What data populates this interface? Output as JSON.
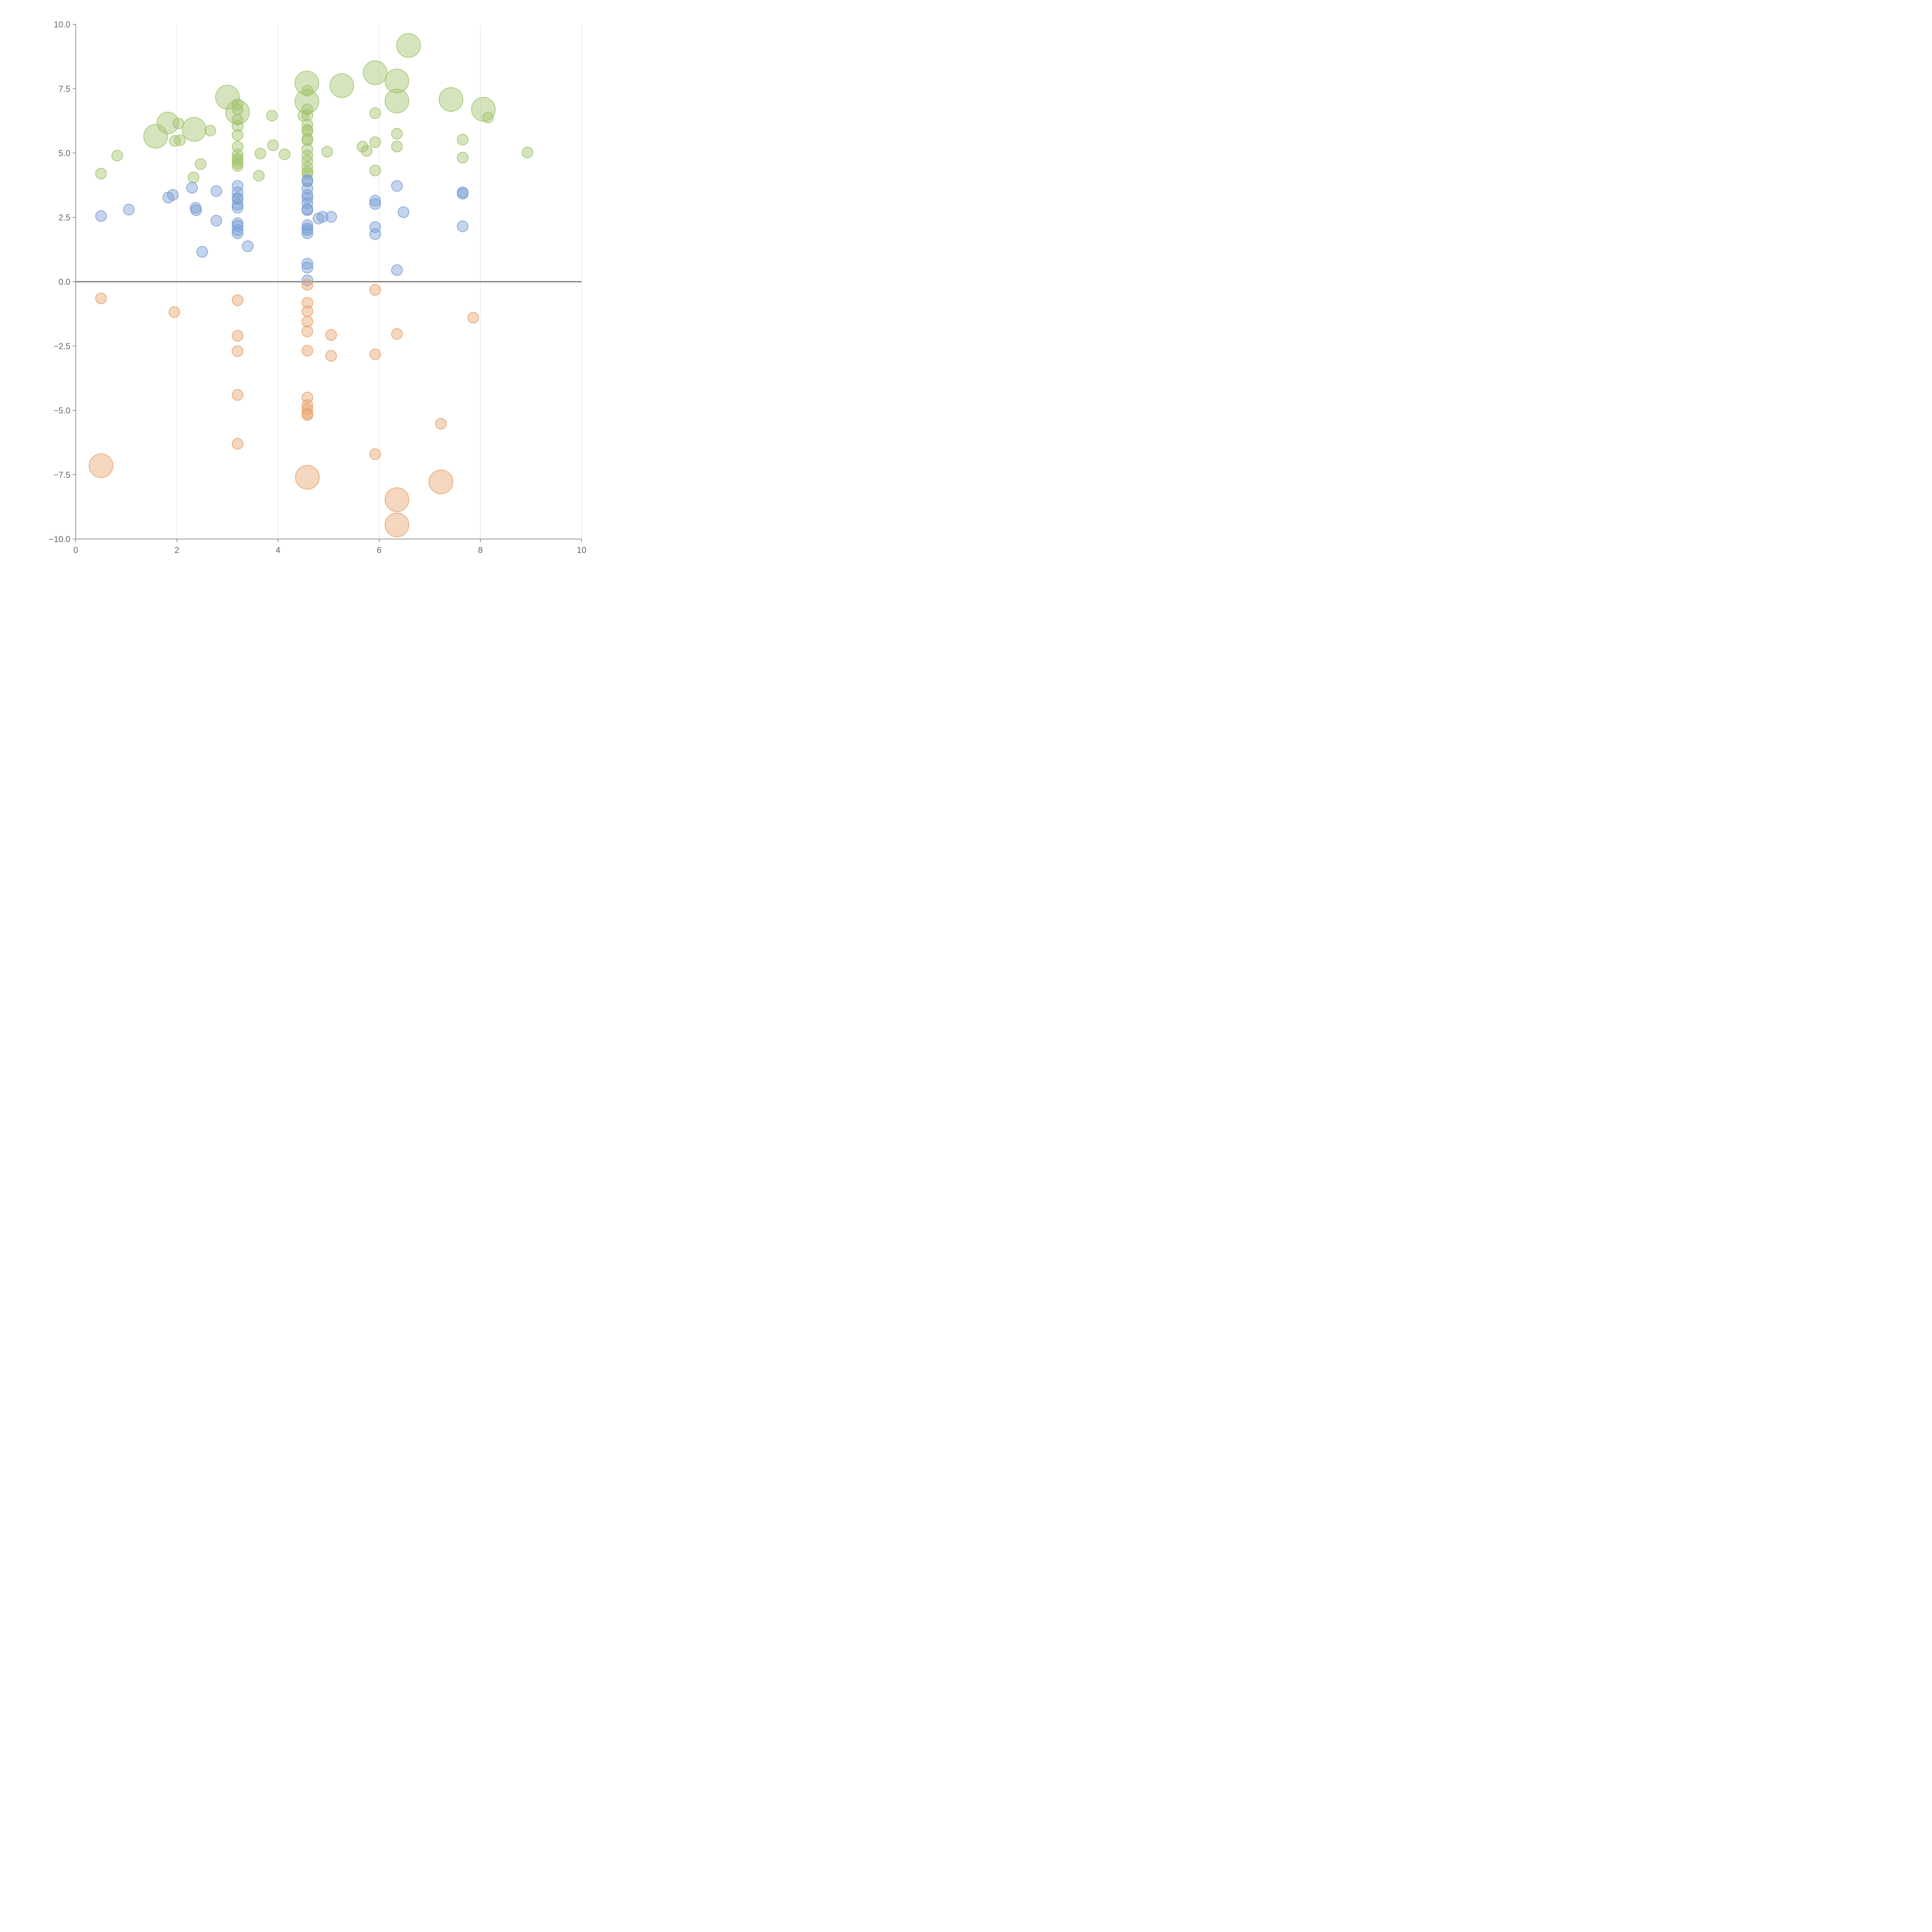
{
  "chart_data": {
    "type": "scatter",
    "title": "",
    "xlabel": "",
    "ylabel": "",
    "xlim": [
      0,
      10
    ],
    "ylim": [
      -10,
      10
    ],
    "grid": "vertical",
    "x_ticks": [
      "0",
      "2",
      "4",
      "6",
      "8",
      "10"
    ],
    "y_ticks": [
      "10.0",
      "7.5",
      "5.0",
      "2.5",
      "0.0",
      "−2.5",
      "−5.0",
      "−7.5",
      "−10.0"
    ],
    "series": [
      {
        "name": "green",
        "color": "#a3c46f",
        "points": [
          [
            0.5,
            4.2,
            1
          ],
          [
            0.82,
            4.9,
            1
          ],
          [
            1.58,
            5.65,
            2.2
          ],
          [
            1.82,
            6.17,
            2
          ],
          [
            2.03,
            6.15,
            1
          ],
          [
            1.96,
            5.47,
            1
          ],
          [
            2.06,
            5.5,
            1
          ],
          [
            2.34,
            5.92,
            2.2
          ],
          [
            2.66,
            5.87,
            1
          ],
          [
            2.33,
            4.05,
            1
          ],
          [
            2.47,
            4.57,
            1
          ],
          [
            3.0,
            7.17,
            2.2
          ],
          [
            3.2,
            6.9,
            1
          ],
          [
            3.2,
            6.7,
            1
          ],
          [
            3.2,
            6.58,
            2.2
          ],
          [
            3.2,
            6.3,
            1
          ],
          [
            3.2,
            6.05,
            1
          ],
          [
            3.2,
            5.7,
            1
          ],
          [
            3.2,
            5.25,
            1
          ],
          [
            3.2,
            4.95,
            1
          ],
          [
            3.2,
            4.8,
            1
          ],
          [
            3.2,
            4.72,
            1
          ],
          [
            3.2,
            4.6,
            1
          ],
          [
            3.2,
            4.5,
            1
          ],
          [
            3.65,
            4.98,
            1
          ],
          [
            3.88,
            6.45,
            1
          ],
          [
            3.9,
            5.3,
            1
          ],
          [
            4.13,
            4.95,
            1
          ],
          [
            3.62,
            4.12,
            1
          ],
          [
            4.57,
            7.72,
            2.2
          ],
          [
            4.58,
            7.42,
            1
          ],
          [
            4.57,
            7.0,
            2.2
          ],
          [
            4.58,
            6.7,
            1
          ],
          [
            4.58,
            6.47,
            1
          ],
          [
            4.5,
            6.45,
            1
          ],
          [
            4.58,
            6.1,
            1
          ],
          [
            4.58,
            5.9,
            1
          ],
          [
            4.58,
            5.85,
            1
          ],
          [
            4.58,
            5.55,
            1
          ],
          [
            4.58,
            5.5,
            1
          ],
          [
            4.58,
            5.15,
            1
          ],
          [
            4.58,
            4.9,
            1
          ],
          [
            4.58,
            4.7,
            1
          ],
          [
            4.58,
            4.45,
            1
          ],
          [
            4.58,
            4.28,
            1
          ],
          [
            4.58,
            4.2,
            1
          ],
          [
            4.97,
            5.05,
            1
          ],
          [
            5.26,
            7.62,
            2.2
          ],
          [
            5.92,
            8.12,
            2.2
          ],
          [
            5.67,
            5.25,
            1
          ],
          [
            5.75,
            5.08,
            1
          ],
          [
            5.92,
            6.55,
            1
          ],
          [
            5.92,
            5.42,
            1
          ],
          [
            5.92,
            4.32,
            1
          ],
          [
            6.58,
            9.18,
            2.2
          ],
          [
            6.35,
            7.8,
            2.2
          ],
          [
            6.35,
            7.02,
            2.2
          ],
          [
            6.35,
            5.75,
            1
          ],
          [
            6.35,
            5.25,
            1
          ],
          [
            7.42,
            7.08,
            2.2
          ],
          [
            7.65,
            5.52,
            1
          ],
          [
            7.65,
            4.82,
            1
          ],
          [
            8.06,
            6.7,
            2.2
          ],
          [
            8.15,
            6.38,
            1
          ],
          [
            8.93,
            5.02,
            1
          ]
        ]
      },
      {
        "name": "blue",
        "color": "#7b9fd4",
        "points": [
          [
            0.5,
            2.55,
            1
          ],
          [
            1.05,
            2.8,
            1
          ],
          [
            1.83,
            3.27,
            1
          ],
          [
            1.92,
            3.37,
            1
          ],
          [
            2.3,
            3.65,
            1
          ],
          [
            2.37,
            2.87,
            1
          ],
          [
            2.38,
            2.78,
            1
          ],
          [
            2.5,
            1.16,
            1
          ],
          [
            2.78,
            2.37,
            1
          ],
          [
            2.78,
            3.52,
            1
          ],
          [
            3.2,
            3.72,
            1
          ],
          [
            3.2,
            3.47,
            1
          ],
          [
            3.2,
            3.25,
            1
          ],
          [
            3.2,
            3.22,
            1
          ],
          [
            3.2,
            3.0,
            1
          ],
          [
            3.2,
            2.88,
            1
          ],
          [
            3.2,
            2.27,
            1
          ],
          [
            3.2,
            2.17,
            1
          ],
          [
            3.2,
            2.0,
            1
          ],
          [
            3.2,
            1.88,
            1
          ],
          [
            3.4,
            1.38,
            1
          ],
          [
            4.58,
            3.95,
            1
          ],
          [
            4.58,
            3.9,
            1
          ],
          [
            4.58,
            3.62,
            1
          ],
          [
            4.58,
            3.37,
            1
          ],
          [
            4.58,
            3.25,
            1
          ],
          [
            4.58,
            3.05,
            1
          ],
          [
            4.58,
            2.82,
            1
          ],
          [
            4.58,
            2.78,
            1
          ],
          [
            4.58,
            2.2,
            1
          ],
          [
            4.58,
            2.07,
            1
          ],
          [
            4.58,
            2.0,
            1
          ],
          [
            4.58,
            1.88,
            1
          ],
          [
            4.58,
            0.7,
            1
          ],
          [
            4.58,
            0.55,
            1
          ],
          [
            4.58,
            0.05,
            1
          ],
          [
            4.8,
            2.45,
            1
          ],
          [
            4.88,
            2.52,
            1
          ],
          [
            5.05,
            2.52,
            1
          ],
          [
            5.92,
            3.15,
            1
          ],
          [
            5.92,
            3.02,
            1
          ],
          [
            5.92,
            2.12,
            1
          ],
          [
            5.92,
            1.85,
            1
          ],
          [
            6.35,
            3.72,
            1
          ],
          [
            6.35,
            0.45,
            1
          ],
          [
            6.48,
            2.7,
            1
          ],
          [
            7.65,
            3.47,
            1
          ],
          [
            7.65,
            3.42,
            1
          ],
          [
            7.65,
            2.15,
            1
          ]
        ]
      },
      {
        "name": "orange",
        "color": "#e8a46f",
        "points": [
          [
            0.5,
            -0.65,
            1
          ],
          [
            0.5,
            -7.15,
            2.2
          ],
          [
            1.95,
            -1.18,
            1
          ],
          [
            3.2,
            -0.72,
            1
          ],
          [
            3.2,
            -2.1,
            1
          ],
          [
            3.2,
            -2.7,
            1
          ],
          [
            3.2,
            -4.4,
            1
          ],
          [
            3.2,
            -6.3,
            1
          ],
          [
            4.58,
            -0.12,
            1
          ],
          [
            4.58,
            -0.82,
            1
          ],
          [
            4.58,
            -1.15,
            1
          ],
          [
            4.58,
            -1.55,
            1
          ],
          [
            4.58,
            -1.93,
            1
          ],
          [
            4.58,
            -2.68,
            1
          ],
          [
            4.58,
            -4.5,
            1
          ],
          [
            4.58,
            -4.8,
            1
          ],
          [
            4.58,
            -4.95,
            1
          ],
          [
            4.58,
            -5.13,
            1
          ],
          [
            4.58,
            -5.18,
            1
          ],
          [
            4.58,
            -7.6,
            2.2
          ],
          [
            5.05,
            -2.07,
            1
          ],
          [
            5.05,
            -2.88,
            1
          ],
          [
            5.92,
            -0.32,
            1
          ],
          [
            5.92,
            -2.82,
            1
          ],
          [
            5.92,
            -6.7,
            1
          ],
          [
            6.35,
            -2.03,
            1
          ],
          [
            6.35,
            -8.47,
            2.2
          ],
          [
            6.35,
            -9.45,
            2.2
          ],
          [
            7.22,
            -5.52,
            1
          ],
          [
            7.22,
            -7.78,
            2.2
          ],
          [
            7.86,
            -1.4,
            1
          ]
        ]
      }
    ]
  }
}
